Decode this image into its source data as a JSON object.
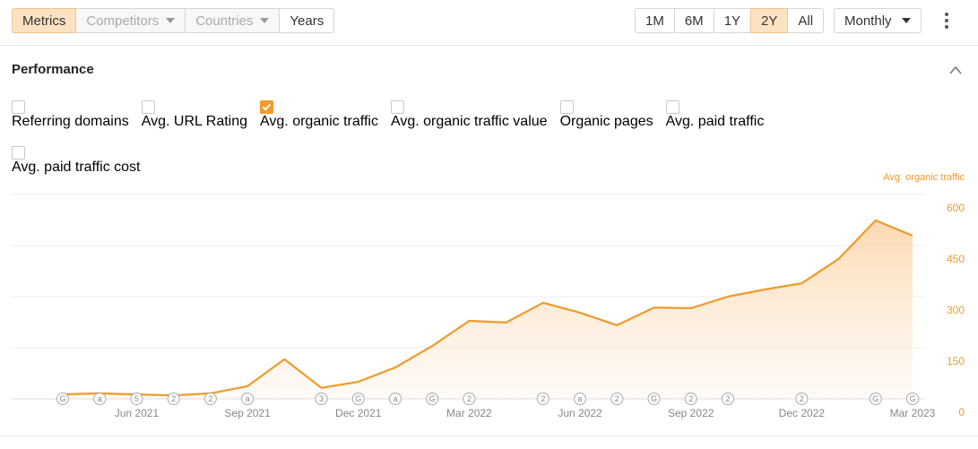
{
  "toolbar": {
    "tabs": [
      {
        "label": "Metrics",
        "active": true,
        "disabled": false,
        "dropdown": false
      },
      {
        "label": "Competitors",
        "active": false,
        "disabled": true,
        "dropdown": true
      },
      {
        "label": "Countries",
        "active": false,
        "disabled": true,
        "dropdown": true
      },
      {
        "label": "Years",
        "active": false,
        "disabled": false,
        "dropdown": false
      }
    ],
    "ranges": [
      {
        "label": "1M",
        "active": false
      },
      {
        "label": "6M",
        "active": false
      },
      {
        "label": "1Y",
        "active": false
      },
      {
        "label": "2Y",
        "active": true
      },
      {
        "label": "All",
        "active": false
      }
    ],
    "interval": "Monthly"
  },
  "section": {
    "title": "Performance",
    "options": [
      {
        "label": "Referring domains",
        "checked": false
      },
      {
        "label": "Avg. URL Rating",
        "checked": false
      },
      {
        "label": "Avg. organic traffic",
        "checked": true
      },
      {
        "label": "Avg. organic traffic value",
        "checked": false
      },
      {
        "label": "Organic pages",
        "checked": false
      },
      {
        "label": "Avg. paid traffic",
        "checked": false
      },
      {
        "label": "Avg. paid traffic cost",
        "checked": false
      }
    ]
  },
  "chart_data": {
    "type": "line",
    "categories": [
      null,
      null,
      "Jun 2021",
      null,
      null,
      "Sep 2021",
      null,
      null,
      "Dec 2021",
      null,
      null,
      "Mar 2022",
      null,
      null,
      "Jun 2022",
      null,
      null,
      "Sep 2022",
      null,
      null,
      "Dec 2022",
      null,
      null,
      "Mar 2023"
    ],
    "series": [
      {
        "name": "Avg. organic traffic",
        "color": "#ef9a2b",
        "values": [
          13,
          16,
          13,
          10,
          16,
          37,
          116,
          32,
          50,
          92,
          155,
          229,
          224,
          282,
          253,
          216,
          268,
          266,
          300,
          321,
          339,
          411,
          524,
          479
        ]
      }
    ],
    "event_markers": [
      "G",
      "a",
      "5",
      "2",
      "2",
      "a",
      null,
      "3",
      "G",
      "a",
      "G",
      "2",
      null,
      "2",
      "a",
      "2",
      "G",
      "2",
      "2",
      null,
      "2",
      null,
      "G",
      "G"
    ],
    "ylim": [
      0,
      600
    ],
    "yticks": [
      0,
      150,
      300,
      450,
      600
    ],
    "grid": true
  }
}
